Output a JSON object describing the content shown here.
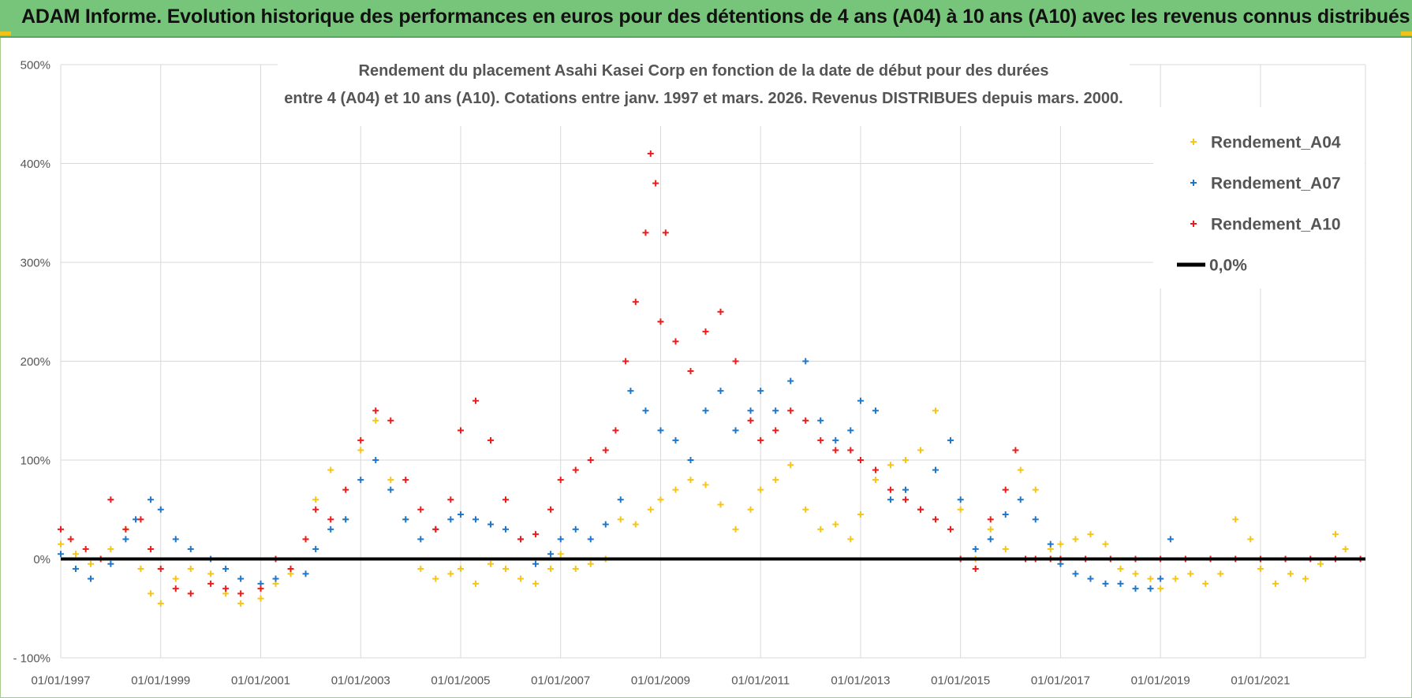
{
  "banner": {
    "title": "ADAM Informe. Evolution historique des performances en euros pour des détentions de 4 ans (A04) à 10 ans (A10) avec les revenus connus distribués"
  },
  "colors": {
    "banner_bg": "#77c57a",
    "A04": "#f5c518",
    "A07": "#1f77c9",
    "A10": "#ef1b1b",
    "zero_line": "#000000",
    "grid": "#d9d9d9"
  },
  "chart_data": {
    "type": "scatter",
    "title_line1": "Rendement du placement Asahi Kasei Corp en fonction de la date de début pour des durées",
    "title_line2": "entre 4 (A04) et 10 ans (A10). Cotations entre janv. 1997 et mars. 2026. Revenus DISTRIBUES depuis mars. 2000.",
    "x_range": [
      1997.0,
      2023.1
    ],
    "y_range": [
      -100,
      500
    ],
    "x_tick_labels": [
      "01/01/1997",
      "01/01/1999",
      "01/01/2001",
      "01/01/2003",
      "01/01/2005",
      "01/01/2007",
      "01/01/2009",
      "01/01/2011",
      "01/01/2013",
      "01/01/2015",
      "01/01/2017",
      "01/01/2019",
      "01/01/2021"
    ],
    "x_tick_values": [
      1997,
      1999,
      2001,
      2003,
      2005,
      2007,
      2009,
      2011,
      2013,
      2015,
      2017,
      2019,
      2021
    ],
    "y_tick_labels": [
      "- 100%",
      "0%",
      "100%",
      "200%",
      "300%",
      "400%",
      "500%"
    ],
    "y_tick_values": [
      -100,
      0,
      100,
      200,
      300,
      400,
      500
    ],
    "legend": [
      {
        "key": "A04",
        "label": "Rendement_A04",
        "kind": "marker"
      },
      {
        "key": "A07",
        "label": "Rendement_A07",
        "kind": "marker"
      },
      {
        "key": "A10",
        "label": "Rendement_A10",
        "kind": "marker"
      },
      {
        "key": "zero",
        "label": "0,0%",
        "kind": "line"
      }
    ],
    "series": [
      {
        "name": "Rendement_A04",
        "key": "A04",
        "x": [
          1997.0,
          1997.3,
          1997.6,
          1998.0,
          1998.3,
          1998.6,
          1998.8,
          1999.0,
          1999.3,
          1999.6,
          2000.0,
          2000.3,
          2000.6,
          2001.0,
          2001.3,
          2001.6,
          2001.9,
          2002.1,
          2002.4,
          2002.7,
          2003.0,
          2003.3,
          2003.6,
          2003.9,
          2004.2,
          2004.5,
          2004.8,
          2005.0,
          2005.3,
          2005.6,
          2005.9,
          2006.2,
          2006.5,
          2006.8,
          2007.0,
          2007.3,
          2007.6,
          2007.9,
          2008.2,
          2008.5,
          2008.8,
          2009.0,
          2009.3,
          2009.6,
          2009.9,
          2010.2,
          2010.5,
          2010.8,
          2011.0,
          2011.3,
          2011.6,
          2011.9,
          2012.2,
          2012.5,
          2012.8,
          2013.0,
          2013.3,
          2013.6,
          2013.9,
          2014.2,
          2014.5,
          2014.8,
          2015.0,
          2015.3,
          2015.6,
          2015.9,
          2016.2,
          2016.5,
          2016.8,
          2017.0,
          2017.3,
          2017.6,
          2017.9,
          2018.2,
          2018.5,
          2018.8,
          2019.0,
          2019.3,
          2019.6,
          2019.9,
          2020.2,
          2020.5,
          2020.8,
          2021.0,
          2021.3,
          2021.6,
          2021.9,
          2022.2,
          2022.5,
          2022.7
        ],
        "y": [
          15,
          5,
          -5,
          10,
          30,
          -10,
          -35,
          -45,
          -20,
          -10,
          -15,
          -35,
          -45,
          -40,
          -25,
          -15,
          20,
          60,
          90,
          40,
          110,
          140,
          80,
          40,
          -10,
          -20,
          -15,
          -10,
          -25,
          -5,
          -10,
          -20,
          -25,
          -10,
          5,
          -10,
          -5,
          0,
          40,
          35,
          50,
          60,
          70,
          80,
          75,
          55,
          30,
          50,
          70,
          80,
          95,
          50,
          30,
          35,
          20,
          45,
          80,
          95,
          100,
          110,
          150,
          120,
          50,
          0,
          30,
          10,
          90,
          70,
          10,
          15,
          20,
          25,
          15,
          -10,
          -15,
          -20,
          -30,
          -20,
          -15,
          -25,
          -15,
          40,
          20,
          -10,
          -25,
          -15,
          -20,
          -5,
          25,
          10
        ]
      },
      {
        "name": "Rendement_A07",
        "key": "A07",
        "x": [
          1997.0,
          1997.3,
          1997.6,
          1998.0,
          1998.3,
          1998.5,
          1998.8,
          1999.0,
          1999.3,
          1999.6,
          2000.0,
          2000.3,
          2000.6,
          2001.0,
          2001.3,
          2001.6,
          2001.9,
          2002.1,
          2002.4,
          2002.7,
          2003.0,
          2003.3,
          2003.6,
          2003.9,
          2004.2,
          2004.5,
          2004.8,
          2005.0,
          2005.3,
          2005.6,
          2005.9,
          2006.2,
          2006.5,
          2006.8,
          2007.0,
          2007.3,
          2007.6,
          2007.9,
          2008.2,
          2008.4,
          2008.7,
          2009.0,
          2009.3,
          2009.6,
          2009.9,
          2010.2,
          2010.5,
          2010.8,
          2011.0,
          2011.3,
          2011.6,
          2011.9,
          2012.2,
          2012.5,
          2012.8,
          2013.0,
          2013.3,
          2013.6,
          2013.9,
          2014.2,
          2014.5,
          2014.8,
          2015.0,
          2015.3,
          2015.6,
          2015.9,
          2016.2,
          2016.5,
          2016.8,
          2017.0,
          2017.3,
          2017.6,
          2017.9,
          2018.2,
          2018.5,
          2018.8,
          2019.0,
          2019.2
        ],
        "y": [
          5,
          -10,
          -20,
          -5,
          20,
          40,
          60,
          50,
          20,
          10,
          0,
          -10,
          -20,
          -25,
          -20,
          -10,
          -15,
          10,
          30,
          40,
          80,
          100,
          70,
          40,
          20,
          30,
          40,
          45,
          40,
          35,
          30,
          20,
          -5,
          5,
          20,
          30,
          20,
          35,
          60,
          170,
          150,
          130,
          120,
          100,
          150,
          170,
          130,
          150,
          170,
          150,
          180,
          200,
          140,
          120,
          130,
          160,
          150,
          60,
          70,
          50,
          90,
          120,
          60,
          10,
          20,
          45,
          60,
          40,
          15,
          -5,
          -15,
          -20,
          -25,
          -25,
          -30,
          -30,
          -20,
          20
        ]
      },
      {
        "name": "Rendement_A10",
        "key": "A10",
        "x": [
          1997.0,
          1997.2,
          1997.5,
          1997.8,
          1998.0,
          1998.3,
          1998.6,
          1998.8,
          1999.0,
          1999.3,
          1999.6,
          2000.0,
          2000.3,
          2000.6,
          2001.0,
          2001.3,
          2001.6,
          2001.9,
          2002.1,
          2002.4,
          2002.7,
          2003.0,
          2003.3,
          2003.6,
          2003.9,
          2004.2,
          2004.5,
          2004.8,
          2005.0,
          2005.3,
          2005.6,
          2005.9,
          2006.2,
          2006.5,
          2006.8,
          2007.0,
          2007.3,
          2007.6,
          2007.9,
          2008.1,
          2008.3,
          2008.5,
          2008.7,
          2008.8,
          2008.9,
          2009.0,
          2009.1,
          2009.3,
          2009.6,
          2009.9,
          2010.2,
          2010.5,
          2010.8,
          2011.0,
          2011.3,
          2011.6,
          2011.9,
          2012.2,
          2012.5,
          2012.8,
          2013.0,
          2013.3,
          2013.6,
          2013.9,
          2014.2,
          2014.5,
          2014.8,
          2015.0,
          2015.3,
          2015.6,
          2015.9,
          2016.1,
          2016.3,
          2016.5,
          2016.8,
          2017.0,
          2017.5,
          2018.0,
          2018.5,
          2019.0,
          2019.5,
          2020.0,
          2020.5,
          2021.0,
          2021.5,
          2022.0,
          2022.5,
          2023.0
        ],
        "y": [
          30,
          20,
          10,
          0,
          60,
          30,
          40,
          10,
          -10,
          -30,
          -35,
          -25,
          -30,
          -35,
          -30,
          0,
          -10,
          20,
          50,
          40,
          70,
          120,
          150,
          140,
          80,
          50,
          30,
          60,
          130,
          160,
          120,
          60,
          20,
          25,
          50,
          80,
          90,
          100,
          110,
          130,
          200,
          260,
          330,
          410,
          380,
          240,
          330,
          220,
          190,
          230,
          250,
          200,
          140,
          120,
          130,
          150,
          140,
          120,
          110,
          110,
          100,
          90,
          70,
          60,
          50,
          40,
          30,
          0,
          -10,
          40,
          70,
          110,
          0,
          0,
          0,
          0,
          0,
          0,
          0,
          0,
          0,
          0,
          0,
          0,
          0,
          0,
          0,
          0
        ]
      }
    ]
  }
}
